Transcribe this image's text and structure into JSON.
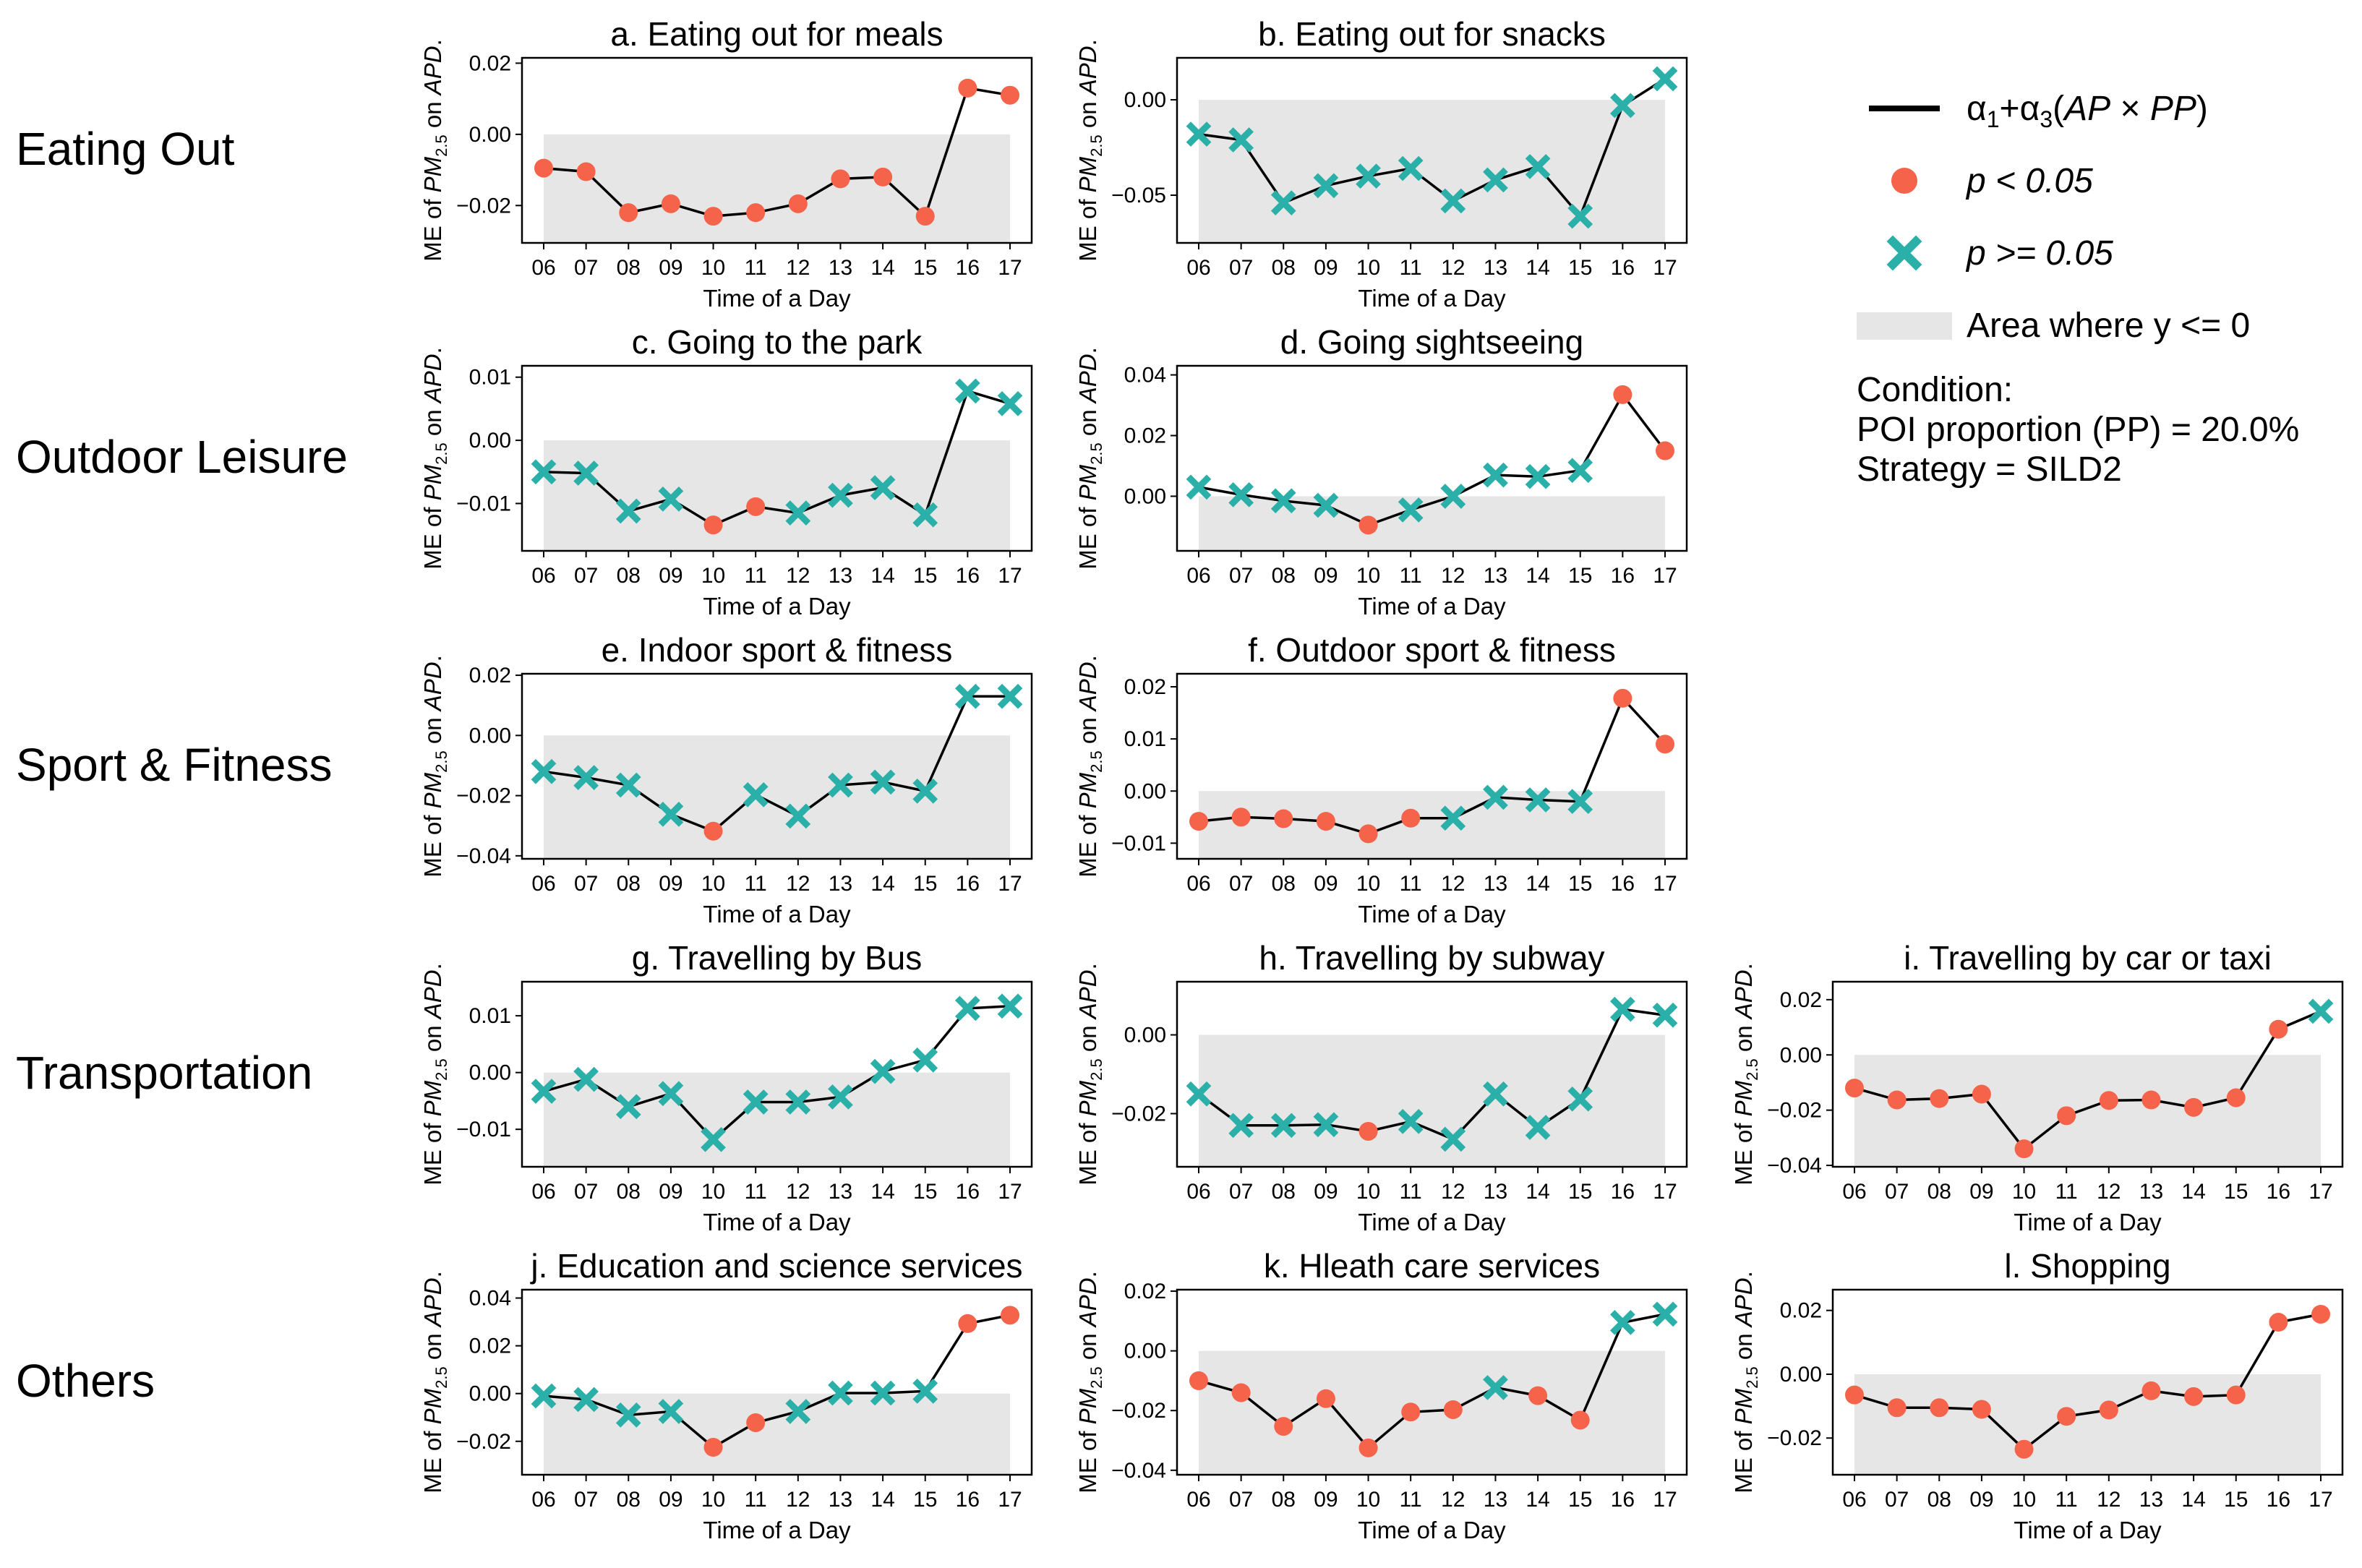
{
  "colors": {
    "significant": "#f4634a",
    "not_significant": "#2ab0a8",
    "line": "#000000",
    "negative_area": "#e6e6e6"
  },
  "row_labels": [
    "Eating Out",
    "Outdoor Leisure",
    "Sport & Fitness",
    "Transportation",
    "Others"
  ],
  "legend": {
    "line_label": "α1+α3(AP × PP)",
    "sig_label": "p < 0.05",
    "nonsig_label": "p >= 0.05",
    "area_label": "Area where y <= 0",
    "condition_heading": "Condition:",
    "condition_poi": "POI proportion (PP) = 20.0%",
    "condition_strategy": "Strategy = SILD2"
  },
  "chart_data": [
    {
      "type": "line",
      "title": "a. Eating out for meals",
      "xlabel": "Time of a Day",
      "ylabel": "ME of PM2.5 on APD.",
      "categories": [
        "06",
        "07",
        "08",
        "09",
        "10",
        "11",
        "12",
        "13",
        "14",
        "15",
        "16",
        "17"
      ],
      "values": [
        -0.0095,
        -0.0105,
        -0.022,
        -0.0195,
        -0.023,
        -0.022,
        -0.0195,
        -0.0125,
        -0.012,
        -0.023,
        0.013,
        0.011
      ],
      "significant": [
        true,
        true,
        true,
        true,
        true,
        true,
        true,
        true,
        true,
        true,
        true,
        true
      ],
      "ylim": [
        -0.0305,
        0.0215
      ],
      "yticks": [
        -0.02,
        0.0,
        0.02
      ],
      "ytick_labels": [
        "−0.02",
        "0.00",
        "0.02"
      ]
    },
    {
      "type": "line",
      "title": "b. Eating out for snacks",
      "xlabel": "Time of a Day",
      "ylabel": "ME of PM2.5 on APD.",
      "categories": [
        "06",
        "07",
        "08",
        "09",
        "10",
        "11",
        "12",
        "13",
        "14",
        "15",
        "16",
        "17"
      ],
      "values": [
        -0.018,
        -0.021,
        -0.054,
        -0.045,
        -0.04,
        -0.036,
        -0.053,
        -0.042,
        -0.035,
        -0.061,
        -0.003,
        0.011
      ],
      "significant": [
        false,
        false,
        false,
        false,
        false,
        false,
        false,
        false,
        false,
        false,
        false,
        false
      ],
      "ylim": [
        -0.075,
        0.022
      ],
      "yticks": [
        -0.05,
        0.0
      ],
      "ytick_labels": [
        "−0.05",
        "0.00"
      ]
    },
    {
      "type": "line",
      "title": "c. Going to the park",
      "xlabel": "Time of a Day",
      "ylabel": "ME of PM2.5 on APD.",
      "categories": [
        "06",
        "07",
        "08",
        "09",
        "10",
        "11",
        "12",
        "13",
        "14",
        "15",
        "16",
        "17"
      ],
      "values": [
        -0.005,
        -0.0052,
        -0.0112,
        -0.0093,
        -0.0134,
        -0.0105,
        -0.0115,
        -0.0087,
        -0.0075,
        -0.0118,
        0.0078,
        0.0058
      ],
      "significant": [
        false,
        false,
        false,
        false,
        true,
        true,
        false,
        false,
        false,
        false,
        false,
        false
      ],
      "ylim": [
        -0.0175,
        0.0118
      ],
      "yticks": [
        -0.01,
        0.0,
        0.01
      ],
      "ytick_labels": [
        "−0.01",
        "0.00",
        "0.01"
      ]
    },
    {
      "type": "line",
      "title": "d. Going sightseeing",
      "xlabel": "Time of a Day",
      "ylabel": "ME of PM2.5 on APD.",
      "categories": [
        "06",
        "07",
        "08",
        "09",
        "10",
        "11",
        "12",
        "13",
        "14",
        "15",
        "16",
        "17"
      ],
      "values": [
        0.003,
        0.0005,
        -0.0015,
        -0.003,
        -0.0095,
        -0.0045,
        0.0,
        0.007,
        0.0065,
        0.0085,
        0.0335,
        0.015
      ],
      "significant": [
        false,
        false,
        false,
        false,
        true,
        false,
        false,
        false,
        false,
        false,
        true,
        true
      ],
      "ylim": [
        -0.018,
        0.043
      ],
      "yticks": [
        0.0,
        0.02,
        0.04
      ],
      "ytick_labels": [
        "0.00",
        "0.02",
        "0.04"
      ]
    },
    {
      "type": "line",
      "title": "e. Indoor sport & fitness",
      "xlabel": "Time of a Day",
      "ylabel": "ME of PM2.5 on APD.",
      "categories": [
        "06",
        "07",
        "08",
        "09",
        "10",
        "11",
        "12",
        "13",
        "14",
        "15",
        "16",
        "17"
      ],
      "values": [
        -0.012,
        -0.014,
        -0.0165,
        -0.0262,
        -0.0318,
        -0.0197,
        -0.0268,
        -0.0165,
        -0.0155,
        -0.0185,
        0.013,
        0.013
      ],
      "significant": [
        false,
        false,
        false,
        false,
        true,
        false,
        false,
        false,
        false,
        false,
        false,
        false
      ],
      "ylim": [
        -0.041,
        0.0205
      ],
      "yticks": [
        -0.04,
        -0.02,
        0.0,
        0.02
      ],
      "ytick_labels": [
        "−0.04",
        "−0.02",
        "0.00",
        "0.02"
      ]
    },
    {
      "type": "line",
      "title": "f. Outdoor sport & fitness",
      "xlabel": "Time of a Day",
      "ylabel": "ME of PM2.5 on APD.",
      "categories": [
        "06",
        "07",
        "08",
        "09",
        "10",
        "11",
        "12",
        "13",
        "14",
        "15",
        "16",
        "17"
      ],
      "values": [
        -0.0058,
        -0.005,
        -0.0053,
        -0.0058,
        -0.0082,
        -0.0052,
        -0.0052,
        -0.0012,
        -0.0017,
        -0.002,
        0.0178,
        0.009
      ],
      "significant": [
        true,
        true,
        true,
        true,
        true,
        true,
        false,
        false,
        false,
        false,
        true,
        true
      ],
      "ylim": [
        -0.013,
        0.0225
      ],
      "yticks": [
        -0.01,
        0.0,
        0.01,
        0.02
      ],
      "ytick_labels": [
        "−0.01",
        "0.00",
        "0.01",
        "0.02"
      ]
    },
    {
      "type": "line",
      "title": "g. Travelling by Bus",
      "xlabel": "Time of a Day",
      "ylabel": "ME of PM2.5 on APD.",
      "categories": [
        "06",
        "07",
        "08",
        "09",
        "10",
        "11",
        "12",
        "13",
        "14",
        "15",
        "16",
        "17"
      ],
      "values": [
        -0.0033,
        -0.0012,
        -0.006,
        -0.0037,
        -0.0118,
        -0.0052,
        -0.0052,
        -0.0043,
        0.0002,
        0.0022,
        0.0113,
        0.0117
      ],
      "significant": [
        false,
        false,
        false,
        false,
        false,
        false,
        false,
        false,
        false,
        false,
        false,
        false
      ],
      "ylim": [
        -0.0166,
        0.016
      ],
      "yticks": [
        -0.01,
        0.0,
        0.01
      ],
      "ytick_labels": [
        "−0.01",
        "0.00",
        "0.01"
      ]
    },
    {
      "type": "line",
      "title": "h. Travelling by subway",
      "xlabel": "Time of a Day",
      "ylabel": "ME of PM2.5 on APD.",
      "categories": [
        "06",
        "07",
        "08",
        "09",
        "10",
        "11",
        "12",
        "13",
        "14",
        "15",
        "16",
        "17"
      ],
      "values": [
        -0.015,
        -0.023,
        -0.023,
        -0.0228,
        -0.0245,
        -0.022,
        -0.0265,
        -0.015,
        -0.0235,
        -0.0163,
        0.0065,
        0.005
      ],
      "significant": [
        false,
        false,
        false,
        false,
        true,
        false,
        false,
        false,
        false,
        false,
        false,
        false
      ],
      "ylim": [
        -0.0335,
        0.0135
      ],
      "yticks": [
        -0.02,
        0.0
      ],
      "ytick_labels": [
        "−0.02",
        "0.00"
      ]
    },
    {
      "type": "line",
      "title": "i. Travelling by car or taxi",
      "xlabel": "Time of a Day",
      "ylabel": "ME of PM2.5 on APD.",
      "categories": [
        "06",
        "07",
        "08",
        "09",
        "10",
        "11",
        "12",
        "13",
        "14",
        "15",
        "16",
        "17"
      ],
      "values": [
        -0.012,
        -0.0163,
        -0.0158,
        -0.0142,
        -0.034,
        -0.022,
        -0.0165,
        -0.0163,
        -0.019,
        -0.0155,
        0.0093,
        0.0158
      ],
      "significant": [
        true,
        true,
        true,
        true,
        true,
        true,
        true,
        true,
        true,
        true,
        true,
        false
      ],
      "ylim": [
        -0.0405,
        0.0265
      ],
      "yticks": [
        -0.04,
        -0.02,
        0.0,
        0.02
      ],
      "ytick_labels": [
        "−0.04",
        "−0.02",
        "0.00",
        "0.02"
      ]
    },
    {
      "type": "line",
      "title": "j. Education and science services",
      "xlabel": "Time of a Day",
      "ylabel": "ME of PM2.5 on APD.",
      "categories": [
        "06",
        "07",
        "08",
        "09",
        "10",
        "11",
        "12",
        "13",
        "14",
        "15",
        "16",
        "17"
      ],
      "values": [
        -0.001,
        -0.0025,
        -0.009,
        -0.0075,
        -0.0225,
        -0.0122,
        -0.0075,
        0.0002,
        0.0002,
        0.001,
        0.0293,
        0.0328
      ],
      "significant": [
        false,
        false,
        false,
        false,
        true,
        true,
        false,
        false,
        false,
        false,
        true,
        true
      ],
      "ylim": [
        -0.034,
        0.0435
      ],
      "yticks": [
        -0.02,
        0.0,
        0.02,
        0.04
      ],
      "ytick_labels": [
        "−0.02",
        "0.00",
        "0.02",
        "0.04"
      ]
    },
    {
      "type": "line",
      "title": "k. Hleath care services",
      "xlabel": "Time of a Day",
      "ylabel": "ME of PM2.5 on APD.",
      "categories": [
        "06",
        "07",
        "08",
        "09",
        "10",
        "11",
        "12",
        "13",
        "14",
        "15",
        "16",
        "17"
      ],
      "values": [
        -0.01,
        -0.014,
        -0.0253,
        -0.016,
        -0.0325,
        -0.0205,
        -0.0197,
        -0.0123,
        -0.015,
        -0.0232,
        0.0095,
        0.0123
      ],
      "significant": [
        true,
        true,
        true,
        true,
        true,
        true,
        true,
        false,
        true,
        true,
        false,
        false
      ],
      "ylim": [
        -0.0415,
        0.0205
      ],
      "yticks": [
        -0.04,
        -0.02,
        0.0,
        0.02
      ],
      "ytick_labels": [
        "−0.04",
        "−0.02",
        "0.00",
        "0.02"
      ]
    },
    {
      "type": "line",
      "title": "l. Shopping",
      "xlabel": "Time of a Day",
      "ylabel": "ME of PM2.5 on APD.",
      "categories": [
        "06",
        "07",
        "08",
        "09",
        "10",
        "11",
        "12",
        "13",
        "14",
        "15",
        "16",
        "17"
      ],
      "values": [
        -0.0065,
        -0.0105,
        -0.0105,
        -0.011,
        -0.0235,
        -0.0132,
        -0.0112,
        -0.0052,
        -0.007,
        -0.0065,
        0.0163,
        0.0188
      ],
      "significant": [
        true,
        true,
        true,
        true,
        true,
        true,
        true,
        true,
        true,
        true,
        true,
        true
      ],
      "ylim": [
        -0.0315,
        0.0265
      ],
      "yticks": [
        -0.02,
        0.0,
        0.02
      ],
      "ytick_labels": [
        "−0.02",
        "0.00",
        "0.02"
      ]
    }
  ]
}
